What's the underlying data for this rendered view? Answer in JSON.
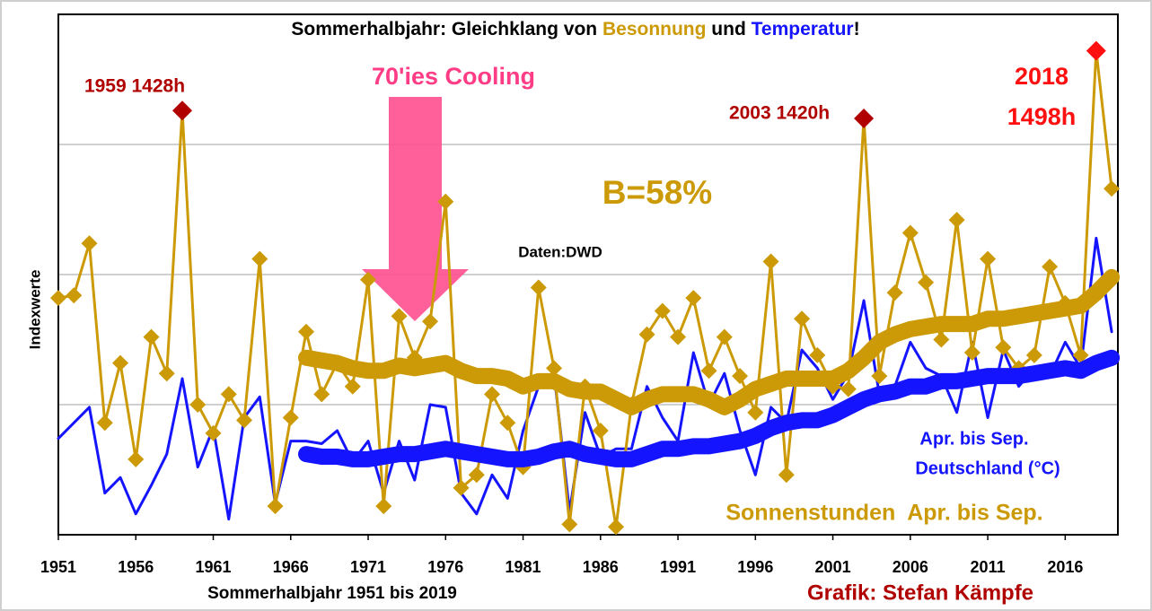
{
  "chart_data": {
    "type": "line",
    "title": [
      {
        "text": "Sommerhalbjahr: Gleichklang von ",
        "color": "#000000"
      },
      {
        "text": "Besonnung",
        "color": "#cc9a06"
      },
      {
        "text": " und ",
        "color": "#000000"
      },
      {
        "text": "Temperatur",
        "color": "#1414ff"
      },
      {
        "text": "!",
        "color": "#000000"
      }
    ],
    "ylabel": "Indexwerte",
    "xlabel": "Sommerhalbjahr 1951 bis 2019",
    "x": [
      1951,
      1952,
      1953,
      1954,
      1955,
      1956,
      1957,
      1958,
      1959,
      1960,
      1961,
      1962,
      1963,
      1964,
      1965,
      1966,
      1967,
      1968,
      1969,
      1970,
      1971,
      1972,
      1973,
      1974,
      1975,
      1976,
      1977,
      1978,
      1979,
      1980,
      1981,
      1982,
      1983,
      1984,
      1985,
      1986,
      1987,
      1988,
      1989,
      1990,
      1991,
      1992,
      1993,
      1994,
      1995,
      1996,
      1997,
      1998,
      1999,
      2000,
      2001,
      2002,
      2003,
      2004,
      2005,
      2006,
      2007,
      2008,
      2009,
      2010,
      2011,
      2012,
      2013,
      2014,
      2015,
      2016,
      2017,
      2018,
      2019
    ],
    "xlim": [
      1951,
      2019.4
    ],
    "xticks": [
      1951,
      1956,
      1961,
      1966,
      1971,
      1976,
      1981,
      1986,
      1991,
      1996,
      2001,
      2006,
      2011,
      2016
    ],
    "ylim": [
      0,
      100
    ],
    "yticks": [
      25,
      50,
      75
    ],
    "grid": true,
    "series": [
      {
        "color": "#1414ff",
        "width": 3,
        "markers": false,
        "values": [
          18.5,
          21.5,
          24.5,
          8,
          11,
          4,
          9.5,
          15.5,
          30,
          13,
          20.5,
          3,
          22.5,
          26.5,
          6,
          18,
          18,
          17.5,
          20,
          14,
          18,
          8,
          18,
          10.5,
          25,
          24.5,
          8,
          4,
          11.5,
          7,
          20,
          28.5,
          31,
          4.5,
          23.5,
          15,
          16.5,
          16.5,
          28.5,
          22.5,
          18,
          35,
          25,
          31,
          20,
          11.5,
          24.5,
          21.5,
          35.5,
          32,
          26,
          31,
          45,
          27,
          28.5,
          37,
          32,
          30.5,
          23.5,
          37,
          22.5,
          35.5,
          28.5,
          32,
          30.5,
          37,
          32,
          57,
          39
        ]
      },
      {
        "color": "#cc9a06",
        "width": 3,
        "markers": true,
        "values": [
          45.5,
          46,
          56,
          21.5,
          33,
          14.5,
          38,
          31,
          81.5,
          25,
          19.5,
          27,
          22,
          53,
          5.5,
          22.5,
          39,
          27,
          33,
          28.5,
          49,
          5.5,
          42,
          34,
          41,
          64,
          9,
          11.5,
          27,
          21.5,
          13,
          47.5,
          32,
          2,
          28.5,
          20,
          1.5,
          25,
          38.5,
          43,
          38,
          45.5,
          31.5,
          38,
          30.5,
          23.5,
          52.5,
          11.5,
          41.5,
          34.5,
          28.5,
          28,
          80,
          30.5,
          46.5,
          58,
          48.5,
          37.5,
          60.5,
          35,
          53,
          36,
          32,
          34.5,
          51.5,
          44.5,
          34.5,
          93,
          66.5
        ]
      },
      {
        "color": "#cc9a06",
        "width": 18,
        "markers": false,
        "values": [
          null,
          null,
          null,
          null,
          null,
          null,
          null,
          null,
          null,
          null,
          null,
          null,
          null,
          null,
          null,
          null,
          34,
          33.5,
          33,
          32,
          31.5,
          31.5,
          32.5,
          32,
          32.5,
          33,
          31.5,
          30.5,
          30.5,
          30,
          28.5,
          29.5,
          29.5,
          28,
          27.5,
          27.5,
          26,
          24.5,
          26,
          27,
          27,
          27,
          26,
          24.5,
          26,
          28,
          29,
          30,
          30,
          30,
          30,
          31.5,
          34,
          37,
          38.5,
          39.5,
          40,
          40.5,
          40.5,
          40.5,
          41.5,
          41.5,
          42,
          42.5,
          43,
          43.5,
          44,
          46.5,
          49.5
        ]
      },
      {
        "color": "#1414ff",
        "width": 18,
        "markers": false,
        "values": [
          null,
          null,
          null,
          null,
          null,
          null,
          null,
          null,
          null,
          null,
          null,
          null,
          null,
          null,
          null,
          null,
          15.5,
          15,
          15,
          14.5,
          14.5,
          15,
          15.5,
          15.5,
          16,
          16.5,
          16,
          15.5,
          15,
          14.5,
          14.5,
          15,
          16,
          16.5,
          15.5,
          15,
          14.5,
          14.5,
          15.5,
          16.5,
          16.5,
          17,
          17,
          17.5,
          18,
          19,
          20.5,
          21.5,
          22,
          22,
          23,
          24.5,
          26,
          27,
          27.5,
          28.5,
          28.5,
          29.5,
          29.5,
          30,
          30.5,
          30.5,
          30.5,
          31,
          31.5,
          32,
          31.5,
          33,
          34
        ]
      }
    ],
    "annotations": [
      {
        "text": "1959 1428h",
        "color": "#b00000"
      },
      {
        "text": "70'ies Cooling",
        "color": "#ff3d86"
      },
      {
        "text": "2003 1420h",
        "color": "#b00000"
      },
      {
        "text": "2018",
        "color": "#ff1010"
      },
      {
        "text": "1498h",
        "color": "#ff1010"
      },
      {
        "text": "B=58%",
        "color": "#cc9a06"
      },
      {
        "text": "Daten:DWD",
        "color": "#000000"
      },
      {
        "text": "Apr. bis Sep.",
        "color": "#1414ff"
      },
      {
        "text": "Deutschland (°C)",
        "color": "#1414ff"
      },
      {
        "text": "Sonnenstunden  Apr. bis Sep.",
        "color": "#cc9a06"
      },
      {
        "text": "Grafik: Stefan Kämpfe",
        "color": "#b00000"
      }
    ]
  }
}
